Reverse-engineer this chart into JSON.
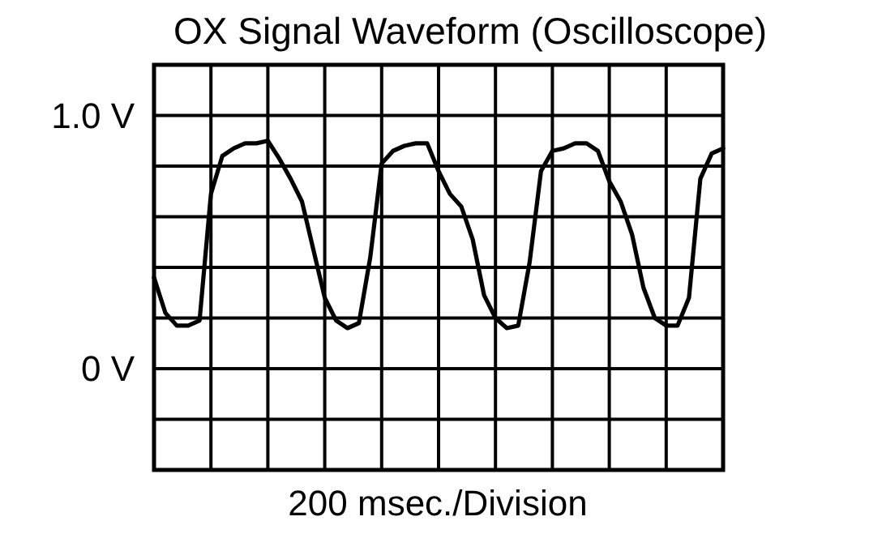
{
  "chart_data": {
    "type": "line",
    "title": "OX Signal Waveform (Oscilloscope)",
    "xlabel": "200 msec./Division",
    "categories": [
      null,
      null,
      null,
      null,
      null,
      null,
      null,
      null,
      null,
      null,
      null,
      null,
      null,
      null,
      null,
      null,
      null,
      null,
      null,
      null,
      null,
      null,
      null,
      null,
      null,
      null,
      null,
      null,
      null,
      null,
      null,
      null,
      null,
      null,
      null,
      null,
      null,
      null,
      null,
      null,
      null,
      null,
      null,
      null,
      null,
      null,
      null,
      null,
      null,
      null,
      null
    ],
    "ylim": [
      -0.4,
      1.2
    ],
    "yticks": [
      {
        "value": -0.4,
        "label": null
      },
      {
        "value": -0.2,
        "label": null
      },
      {
        "value": 0,
        "label": "0 V"
      },
      {
        "value": 0.2,
        "label": null
      },
      {
        "value": 0.4,
        "label": null
      },
      {
        "value": 0.6,
        "label": null
      },
      {
        "value": 0.8,
        "label": null
      },
      {
        "value": 1.0,
        "label": "1.0 V"
      },
      {
        "value": 1.2,
        "label": null
      }
    ],
    "tick_labels": "y",
    "grid": true,
    "marker": "none",
    "line_style": "solid",
    "series": [
      {
        "color": "#000000",
        "values": [
          0.36,
          0.22,
          0.17,
          0.17,
          0.19,
          0.69,
          0.84,
          0.87,
          0.89,
          0.89,
          0.9,
          0.83,
          0.75,
          0.66,
          0.47,
          0.28,
          0.19,
          0.16,
          0.18,
          0.44,
          0.81,
          0.86,
          0.88,
          0.89,
          0.89,
          0.78,
          0.69,
          0.64,
          0.51,
          0.29,
          0.2,
          0.16,
          0.17,
          0.42,
          0.78,
          0.86,
          0.87,
          0.89,
          0.89,
          0.86,
          0.74,
          0.66,
          0.53,
          0.32,
          0.2,
          0.17,
          0.17,
          0.28,
          0.75,
          0.85,
          0.87
        ]
      }
    ]
  }
}
